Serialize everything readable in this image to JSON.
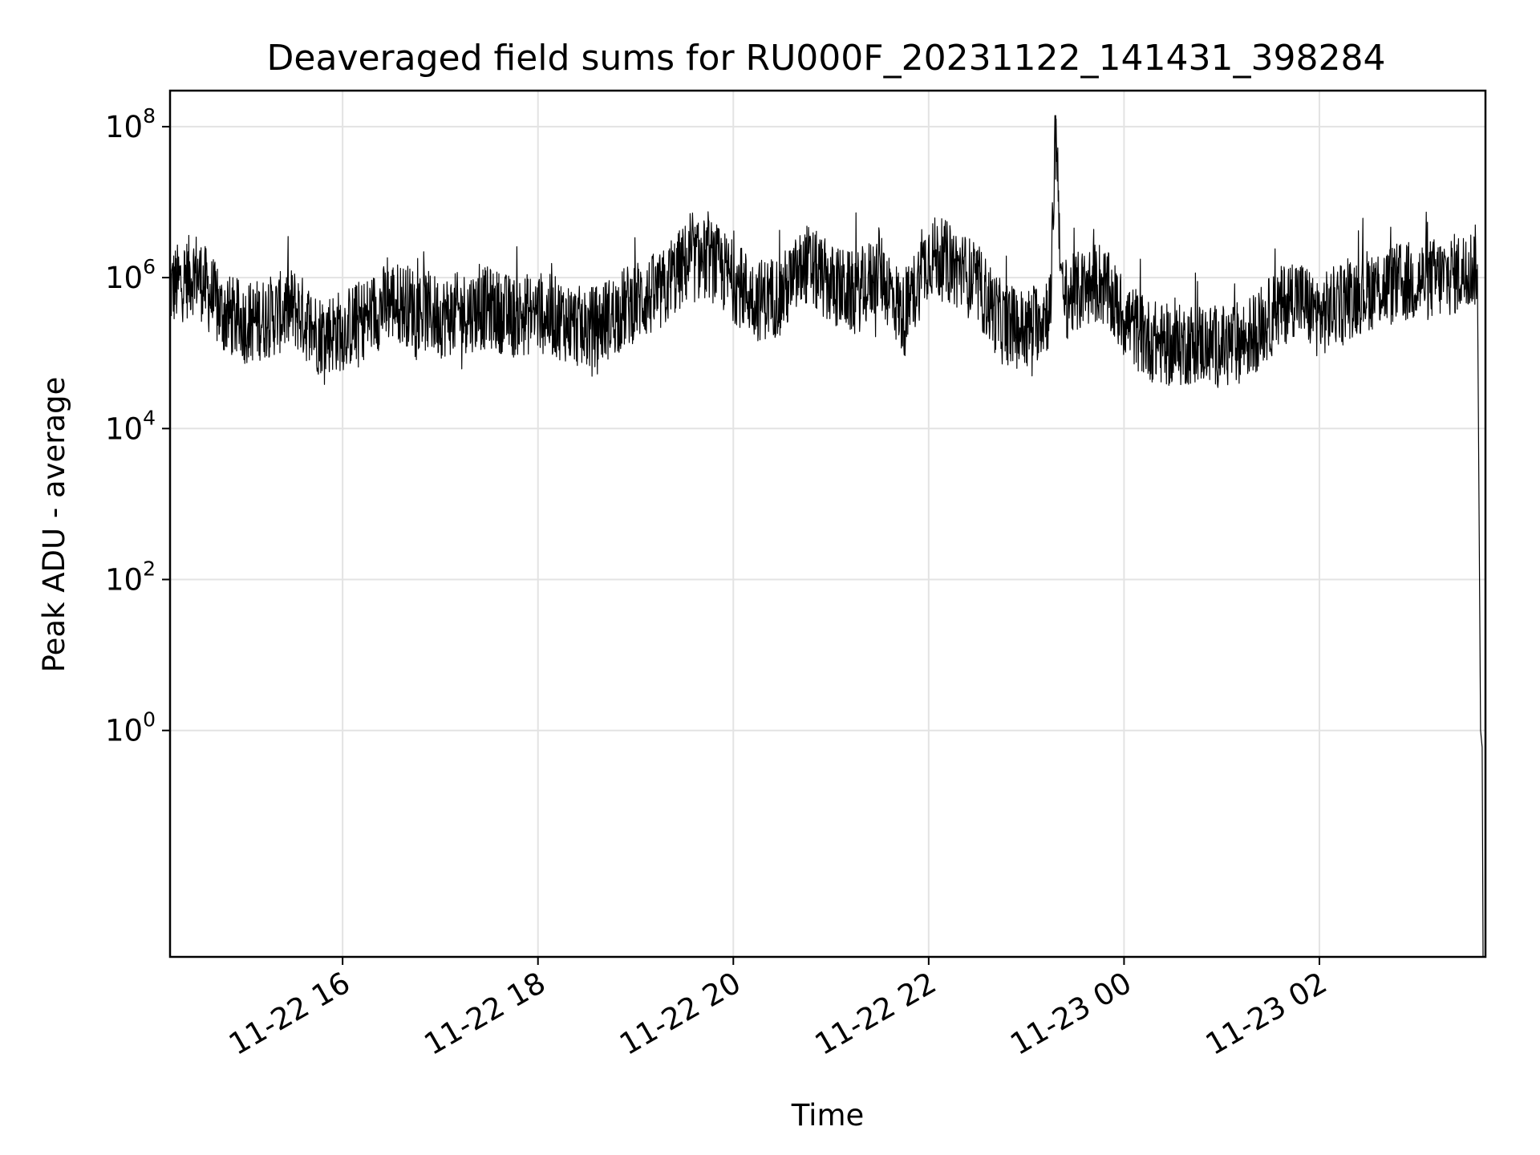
{
  "chart_data": {
    "type": "line",
    "title": "Deaveraged field sums for RU000F_20231122_141431_398284",
    "xlabel": "Time",
    "ylabel": "Peak ADU - average",
    "yscale": "log",
    "ylim": [
      0.001,
      300000000
    ],
    "xlim": [
      "2023-11-22 14:14",
      "2023-11-23 03:42"
    ],
    "grid": true,
    "line_color": "#000000",
    "x_ticks": [
      {
        "value": "2023-11-22 16:00",
        "label": "11-22 16"
      },
      {
        "value": "2023-11-22 18:00",
        "label": "11-22 18"
      },
      {
        "value": "2023-11-22 20:00",
        "label": "11-22 20"
      },
      {
        "value": "2023-11-22 22:00",
        "label": "11-22 22"
      },
      {
        "value": "2023-11-23 00:00",
        "label": "11-23 00"
      },
      {
        "value": "2023-11-23 02:00",
        "label": "11-23 02"
      }
    ],
    "y_ticks": [
      {
        "value": 1,
        "base": "10",
        "exp": "0"
      },
      {
        "value": 100,
        "base": "10",
        "exp": "2"
      },
      {
        "value": 10000,
        "base": "10",
        "exp": "4"
      },
      {
        "value": 1000000,
        "base": "10",
        "exp": "6"
      },
      {
        "value": 100000000,
        "base": "10",
        "exp": "8"
      }
    ],
    "series": [
      {
        "x": [
          "2023-11-22 14:14",
          "2023-11-22 14:30",
          "2023-11-22 14:45",
          "2023-11-22 15:00",
          "2023-11-22 15:15",
          "2023-11-22 15:30",
          "2023-11-22 15:45",
          "2023-11-22 16:00",
          "2023-11-22 16:15",
          "2023-11-22 16:30",
          "2023-11-22 16:45",
          "2023-11-22 17:00",
          "2023-11-22 17:15",
          "2023-11-22 17:30",
          "2023-11-22 17:45",
          "2023-11-22 18:00",
          "2023-11-22 18:15",
          "2023-11-22 18:30",
          "2023-11-22 18:45",
          "2023-11-22 19:00",
          "2023-11-22 19:15",
          "2023-11-22 19:30",
          "2023-11-22 19:45",
          "2023-11-22 20:00",
          "2023-11-22 20:15",
          "2023-11-22 20:30",
          "2023-11-22 20:45",
          "2023-11-22 21:00",
          "2023-11-22 21:15",
          "2023-11-22 21:30",
          "2023-11-22 21:45",
          "2023-11-22 22:00",
          "2023-11-22 22:15",
          "2023-11-22 22:30",
          "2023-11-22 22:45",
          "2023-11-22 23:00",
          "2023-11-22 23:15",
          "2023-11-22 23:18",
          "2023-11-22 23:22",
          "2023-11-22 23:30",
          "2023-11-22 23:45",
          "2023-11-23 00:00",
          "2023-11-23 00:15",
          "2023-11-23 00:30",
          "2023-11-23 00:45",
          "2023-11-23 01:00",
          "2023-11-23 01:15",
          "2023-11-23 01:30",
          "2023-11-23 01:45",
          "2023-11-23 02:00",
          "2023-11-23 02:15",
          "2023-11-23 02:30",
          "2023-11-23 02:45",
          "2023-11-23 03:00",
          "2023-11-23 03:15",
          "2023-11-23 03:30",
          "2023-11-23 03:37",
          "2023-11-23 03:39",
          "2023-11-23 03:41"
        ],
        "y": [
          700000,
          1200000,
          350000,
          250000,
          300000,
          400000,
          180000,
          200000,
          300000,
          500000,
          400000,
          300000,
          350000,
          400000,
          300000,
          350000,
          280000,
          200000,
          300000,
          500000,
          600000,
          1500000,
          1800000,
          900000,
          500000,
          600000,
          1500000,
          800000,
          600000,
          1200000,
          300000,
          2000000,
          1500000,
          800000,
          250000,
          200000,
          400000,
          140000000,
          500000,
          600000,
          900000,
          300000,
          150000,
          120000,
          140000,
          120000,
          150000,
          300000,
          600000,
          300000,
          500000,
          700000,
          800000,
          900000,
          1000000,
          1200000,
          1500000,
          1,
          0.001
        ]
      }
    ]
  }
}
